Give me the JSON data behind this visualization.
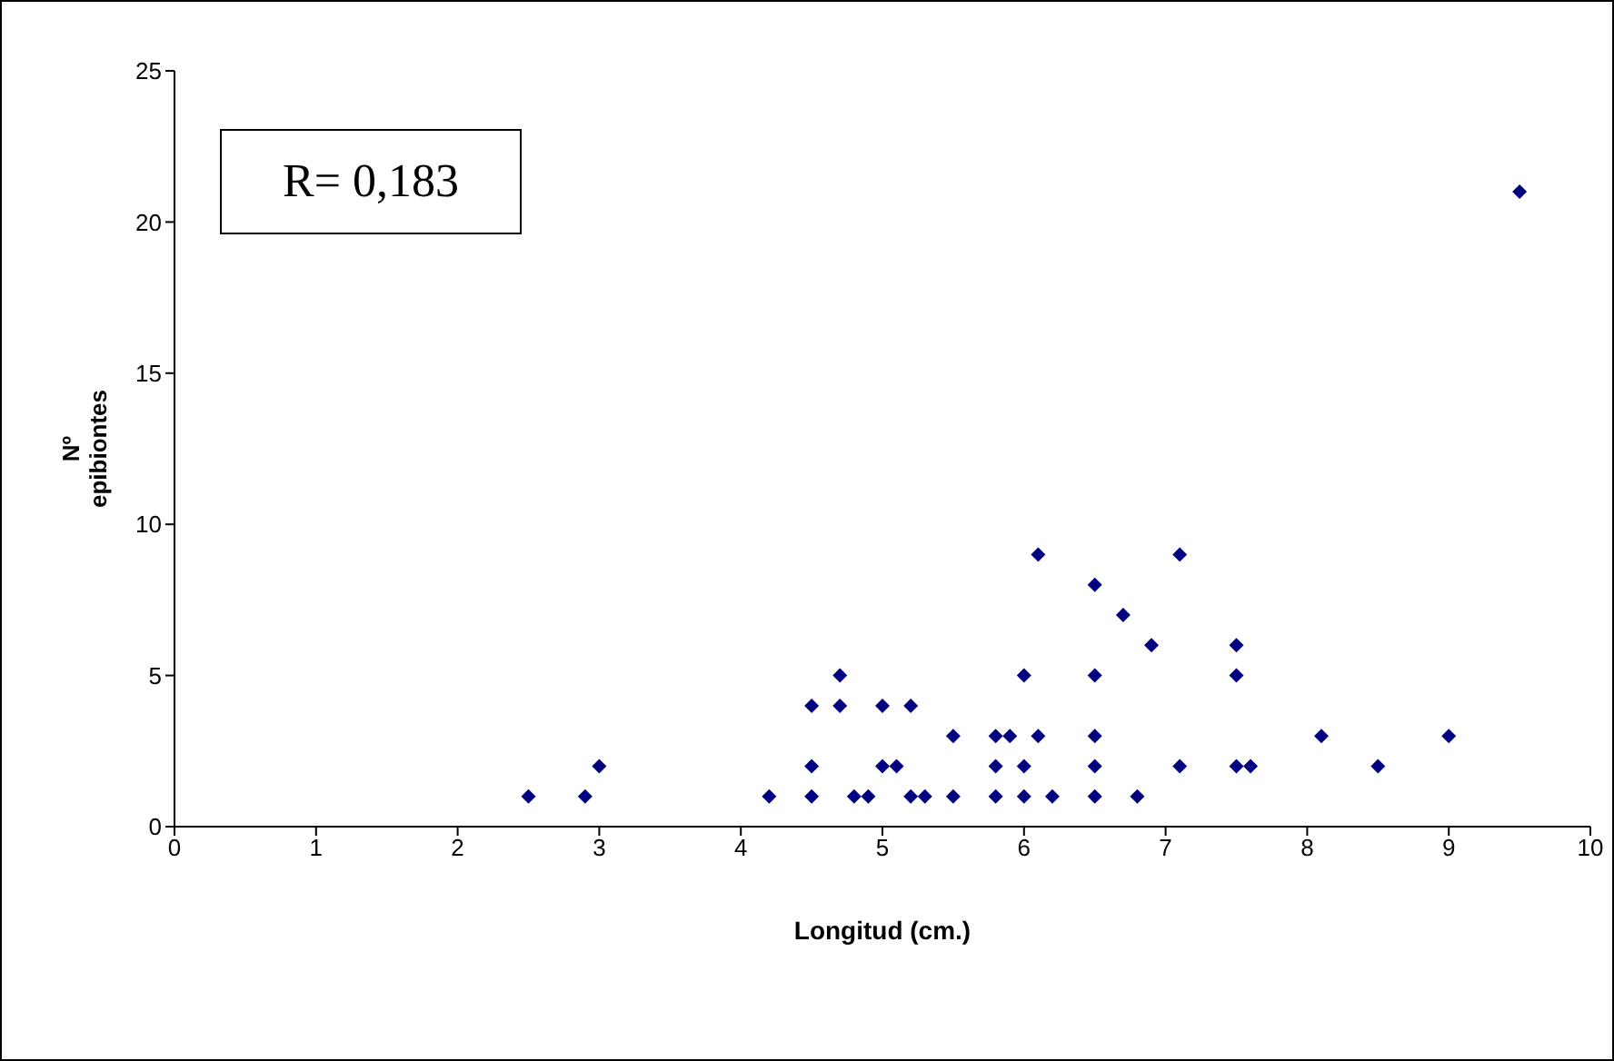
{
  "chart_data": {
    "type": "scatter",
    "xlabel": "Longitud (cm.)",
    "ylabel": "Nº epibiontes",
    "annotations": [
      "R= 0,183"
    ],
    "xlim": [
      0,
      10
    ],
    "xticks": [
      0,
      1,
      2,
      3,
      4,
      5,
      6,
      7,
      8,
      9,
      10
    ],
    "ylim": [
      0,
      25
    ],
    "yticks": [
      0,
      5,
      10,
      15,
      20,
      25
    ],
    "grid": false,
    "legend": false,
    "marker": "diamond",
    "series": [
      {
        "color": "#000080",
        "x": [
          2.5,
          2.9,
          3,
          4.2,
          4.5,
          4.5,
          4.5,
          4.7,
          4.7,
          4.8,
          4.9,
          5,
          5,
          5.1,
          5.2,
          5.2,
          5.3,
          5.5,
          5.5,
          5.8,
          5.8,
          5.8,
          5.9,
          6,
          6,
          6,
          6.1,
          6.1,
          6.2,
          6.5,
          6.5,
          6.5,
          6.5,
          6.5,
          6.7,
          6.8,
          6.9,
          7.1,
          7.1,
          7.5,
          7.5,
          7.5,
          7.6,
          8.1,
          8.5,
          9,
          9.5
        ],
        "values": [
          1,
          1,
          2,
          1,
          1,
          2,
          4,
          4,
          5,
          1,
          1,
          2,
          4,
          2,
          1,
          4,
          1,
          1,
          3,
          1,
          2,
          3,
          3,
          1,
          2,
          5,
          3,
          9,
          1,
          1,
          2,
          3,
          5,
          8,
          7,
          1,
          6,
          2,
          9,
          2,
          5,
          6,
          2,
          3,
          2,
          3,
          21
        ]
      }
    ]
  }
}
